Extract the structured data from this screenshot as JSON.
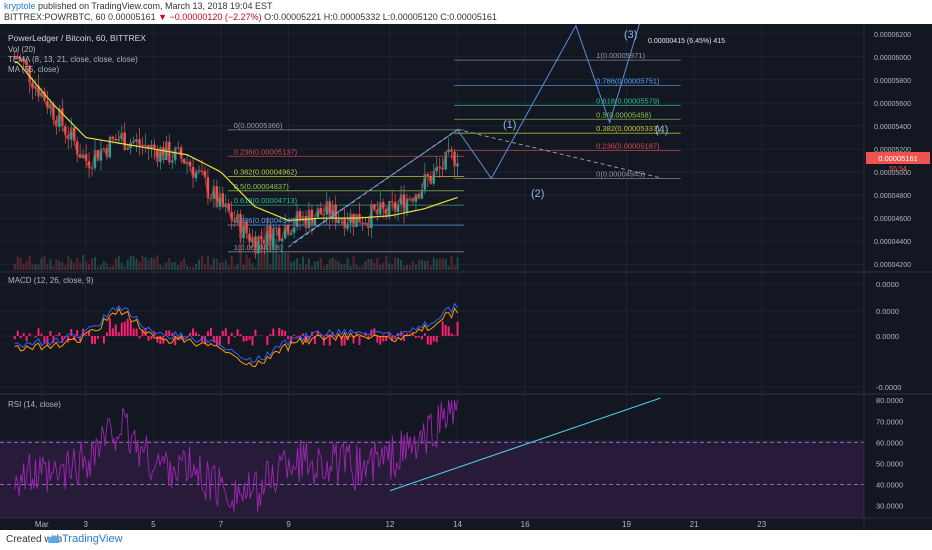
{
  "header": {
    "author": "kryptole",
    "published": "published on TradingView.com, March 13, 2018 19:04 EST",
    "symbol": "BITTREX:POWRBTC, 60",
    "price": "0.00005161",
    "arrow": "▼",
    "change": "−0.00000120 (−2.27%)",
    "ohlc": "O:0.00005221 H:0.00005332 L:0.00005120 C:0.00005161"
  },
  "legend": {
    "title": "PowerLedger / Bitcoin, 60, BITTREX",
    "vol": "Vol (20)",
    "tema": "TEMA (8, 13, 21, close, close, close)",
    "ma": "MA (55, close)",
    "macd": "MACD (12, 26, close, 9)",
    "rsi": "RSI (14, close)"
  },
  "axes": {
    "price_ticks": [
      "0.00006200",
      "0.00006000",
      "0.00005800",
      "0.00005600",
      "0.00005400",
      "0.00005200",
      "0.00005000",
      "0.00004800",
      "0.00004600",
      "0.00004400",
      "0.00004200"
    ],
    "macd_ticks": [
      "0.0000",
      "0.0000",
      "0.0000",
      "-0.0000"
    ],
    "rsi_ticks": [
      "80.0000",
      "70.0000",
      "60.0000",
      "50.0000",
      "40.0000",
      "30.0000"
    ],
    "time_ticks": [
      "Mar",
      "3",
      "5",
      "7",
      "9",
      "12",
      "14",
      "16",
      "19",
      "21",
      "23"
    ],
    "current_price_label": "0.00005161",
    "countdown": "55:54"
  },
  "annotations": {
    "target_box": "0.00000415 (6.45%) 415",
    "waves": [
      "(1)",
      "(2)",
      "(3)",
      "(4)"
    ],
    "fib_right": [
      {
        "text": "1(0.00005971)",
        "color": "#9598a1"
      },
      {
        "text": "0.786(0.00005751)",
        "color": "#5b9cf6"
      },
      {
        "text": "0.618(0.00005579)",
        "color": "#2bbd8e"
      },
      {
        "text": "0.5(0.00005458)",
        "color": "#8bc34a"
      },
      {
        "text": "0.382(0.00005337)",
        "color": "#c0ca33"
      },
      {
        "text": "0.236(0.00005187)",
        "color": "#d84b4b"
      },
      {
        "text": "0(0.00004945)",
        "color": "#9598a1"
      }
    ],
    "fib_left": [
      {
        "text": "0(0.00005366)",
        "color": "#9598a1"
      },
      {
        "text": "0.236(0.00005137)",
        "color": "#d84b4b"
      },
      {
        "text": "0.382(0.00004962)",
        "color": "#c0ca33"
      },
      {
        "text": "0.5(0.00004837)",
        "color": "#8bc34a"
      },
      {
        "text": "0.618(0.00004713)",
        "color": "#2bbd8e"
      },
      {
        "text": "0.786(0.00004540)",
        "color": "#5b9cf6"
      },
      {
        "text": "1(0.00004308)",
        "color": "#9598a1"
      }
    ]
  },
  "colors": {
    "background": "#131722",
    "grid": "#232a3b",
    "up": "#26a69a",
    "down": "#ef5350",
    "tema": "#b63a3a",
    "ma": "#e8e03c",
    "macd_line": "#2962ff",
    "signal_line": "#ff9800",
    "macd_hist": "#ff1f6e",
    "rsi": "#9c27b0",
    "trendline": "#4dd0e1"
  },
  "footer": {
    "created": "Created with",
    "brand": "TradingView"
  },
  "chart_data": [
    {
      "type": "line",
      "panel": "price",
      "title": "PowerLedger / Bitcoin, 60, BITTREX",
      "x": [
        "Mar 1",
        "Mar 2",
        "Mar 3",
        "Mar 4",
        "Mar 5",
        "Mar 6",
        "Mar 7",
        "Mar 8",
        "Mar 9",
        "Mar 10",
        "Mar 11",
        "Mar 12",
        "Mar 13",
        "Mar 14"
      ],
      "series": [
        {
          "name": "POWRBTC close",
          "values": [
            6e-05,
            5.55e-05,
            5.1e-05,
            5.3e-05,
            5.2e-05,
            5.1e-05,
            4.7e-05,
            4.4e-05,
            4.55e-05,
            4.65e-05,
            4.6e-05,
            4.65e-05,
            4.9e-05,
            5.16e-05
          ]
        },
        {
          "name": "MA (55, close)",
          "values": [
            5.95e-05,
            5.6e-05,
            5.3e-05,
            5.25e-05,
            5.2e-05,
            5.15e-05,
            5e-05,
            4.7e-05,
            4.58e-05,
            4.6e-05,
            4.6e-05,
            4.62e-05,
            4.68e-05,
            4.78e-05
          ]
        }
      ],
      "ylim": [
        4.15e-05,
        6.25e-05
      ],
      "projection": [
        {
          "label": "(1)",
          "date": "Mar 14",
          "price": 5.366e-05
        },
        {
          "label": "(2)",
          "date": "Mar 15",
          "price": 4.945e-05
        },
        {
          "label": "(3)",
          "date": "Mar 17.5",
          "price": 6.27e-05
        },
        {
          "label": "(4)",
          "date": "Mar 18.5",
          "price": 5.43e-05
        }
      ],
      "fib_extension": {
        "levels": [
          1,
          0.786,
          0.618,
          0.5,
          0.382,
          0.236,
          0
        ],
        "prices": [
          5.971e-05,
          5.751e-05,
          5.579e-05,
          5.458e-05,
          5.337e-05,
          5.187e-05,
          4.945e-05
        ]
      },
      "fib_retracement": {
        "levels": [
          0,
          0.236,
          0.382,
          0.5,
          0.618,
          0.786,
          1
        ],
        "prices": [
          5.366e-05,
          5.137e-05,
          4.962e-05,
          4.837e-05,
          4.713e-05,
          4.54e-05,
          4.308e-05
        ]
      }
    },
    {
      "type": "line",
      "panel": "macd",
      "title": "MACD (12, 26, close, 9)",
      "x": [
        "Mar 1",
        "Mar 2",
        "Mar 3",
        "Mar 4",
        "Mar 5",
        "Mar 6",
        "Mar 7",
        "Mar 8",
        "Mar 9",
        "Mar 10",
        "Mar 11",
        "Mar 12",
        "Mar 13",
        "Mar 14"
      ],
      "series": [
        {
          "name": "MACD",
          "values": [
            -0.3,
            -0.2,
            0.1,
            1.2,
            0.1,
            0.0,
            -0.4,
            -1.0,
            -0.2,
            0.1,
            0.2,
            0.0,
            0.4,
            1.2
          ]
        }
      ]
    },
    {
      "type": "line",
      "panel": "rsi",
      "title": "RSI (14, close)",
      "x": [
        "Mar 1",
        "Mar 2",
        "Mar 3",
        "Mar 4",
        "Mar 5",
        "Mar 6",
        "Mar 7",
        "Mar 8",
        "Mar 9",
        "Mar 10",
        "Mar 11",
        "Mar 12",
        "Mar 13",
        "Mar 14"
      ],
      "series": [
        {
          "name": "RSI",
          "values": [
            45,
            42,
            52,
            68,
            50,
            48,
            38,
            35,
            52,
            50,
            48,
            52,
            60,
            80
          ]
        }
      ],
      "ylim": [
        25,
        82
      ],
      "bands": [
        40,
        60
      ],
      "trendline": [
        {
          "date": "Mar 12",
          "value": 37
        },
        {
          "date": "Mar 20",
          "value": 81
        }
      ]
    }
  ]
}
